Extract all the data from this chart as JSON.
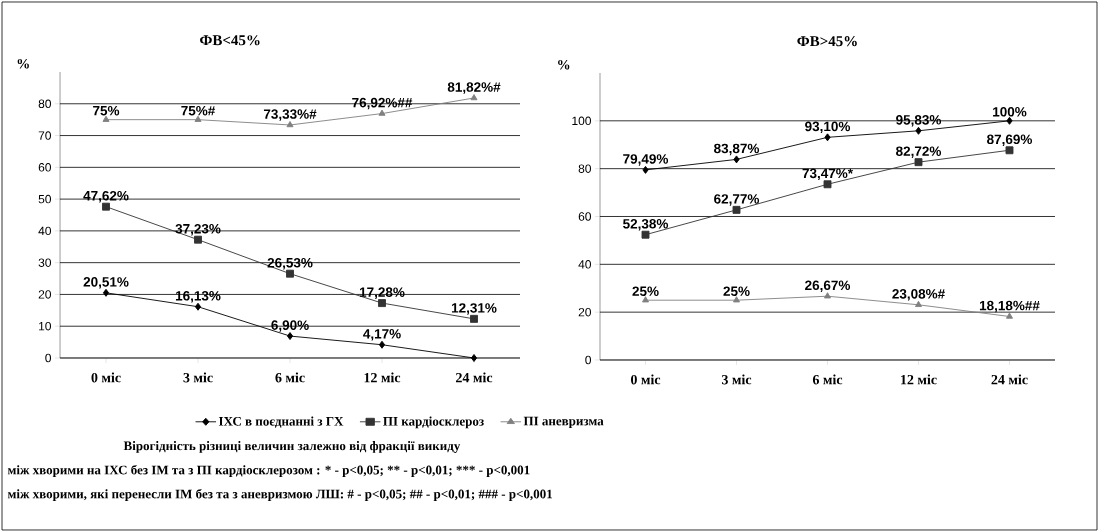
{
  "chart_data": [
    {
      "type": "line",
      "title": "ФВ<45%",
      "ylabel": "%",
      "categories": [
        "0 міс",
        "3 міс",
        "6 міс",
        "12 міс",
        "24 міс"
      ],
      "ylim": [
        0,
        90
      ],
      "yticks": [
        0,
        10,
        20,
        30,
        40,
        50,
        60,
        70,
        80
      ],
      "grid": "y",
      "legend": "bottom",
      "series": [
        {
          "name": "ІХС в поєднанні з ГХ",
          "color": "#000000",
          "marker": "diamond",
          "values": [
            20.51,
            16.13,
            6.9,
            4.17,
            0
          ],
          "value_labels": [
            "20,51%",
            "16,13%",
            "6,90%",
            "4,17%",
            null
          ]
        },
        {
          "name": "ПІ кардіосклероз",
          "color": "#333333",
          "marker": "square",
          "values": [
            47.62,
            37.23,
            26.53,
            17.28,
            12.31
          ],
          "value_labels": [
            "47,62%",
            "37,23%",
            "26,53%",
            "17,28%",
            "12,31%"
          ]
        },
        {
          "name": "ПІ аневризма",
          "color": "#808080",
          "marker": "triangle",
          "values": [
            75,
            75,
            73.33,
            76.92,
            81.82
          ],
          "value_labels": [
            "75%",
            "75%#",
            "73,33%#",
            "76,92%##",
            "81,82%#"
          ]
        }
      ],
      "annotations": [
        "Вірогідність різниці величин залежно від фракції викиду",
        "між хворими на ІХС без ІМ та з ПІ кардіосклерозом : * - p<0,05; ** - p<0,01; *** - p<0,001",
        "між хворими, які перенесли ІМ без та з аневризмою ЛШ: # - p<0,05; ## - p<0,01; ### - p<0,001"
      ]
    },
    {
      "type": "line",
      "title": "ФВ>45%",
      "ylabel": "%",
      "categories": [
        "0 міс",
        "3 міс",
        "6 міс",
        "12 міс",
        "24 міс"
      ],
      "ylim": [
        0,
        120
      ],
      "yticks": [
        0,
        20,
        40,
        60,
        80,
        100
      ],
      "grid": "y",
      "series": [
        {
          "color": "#000000",
          "marker": "diamond",
          "values": [
            79.49,
            83.87,
            93.1,
            95.83,
            100
          ],
          "value_labels": [
            "79,49%",
            "83,87%",
            "93,10%",
            "95,83%",
            "100%"
          ]
        },
        {
          "color": "#333333",
          "marker": "square",
          "values": [
            52.38,
            62.77,
            73.47,
            82.72,
            87.69
          ],
          "value_labels": [
            "52,38%",
            "62,77%",
            "73,47%*",
            "82,72%",
            "87,69%"
          ]
        },
        {
          "color": "#808080",
          "marker": "triangle",
          "values": [
            25,
            25,
            26.67,
            23.08,
            18.18
          ],
          "value_labels": [
            "25%",
            "25%",
            "26,67%",
            "23,08%#",
            "18,18%##"
          ]
        }
      ]
    }
  ]
}
